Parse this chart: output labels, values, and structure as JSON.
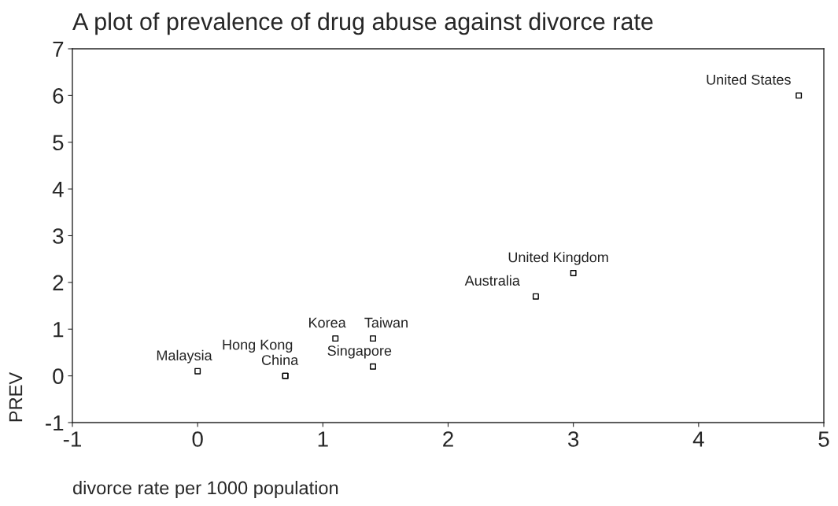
{
  "chart_data": {
    "type": "scatter",
    "title": "A plot of prevalence of drug abuse against divorce rate",
    "xlabel": "divorce rate per 1000 population",
    "ylabel": "PREV",
    "x": [
      4.8,
      3.0,
      2.7,
      1.1,
      1.4,
      1.4,
      0.7,
      0.7,
      0.0
    ],
    "series": [
      {
        "color": "#000000",
        "values": [
          6.0,
          2.2,
          1.7,
          0.8,
          0.8,
          0.2,
          0.0,
          0.0,
          0.1
        ]
      }
    ],
    "marker": "square",
    "annotations": [
      {
        "text": "United States",
        "x": 4.8,
        "y": 6.0
      },
      {
        "text": "United Kingdom",
        "x": 3.0,
        "y": 2.2
      },
      {
        "text": "Australia",
        "x": 2.7,
        "y": 1.7
      },
      {
        "text": "Korea",
        "x": 1.1,
        "y": 0.8
      },
      {
        "text": "Taiwan",
        "x": 1.4,
        "y": 0.8
      },
      {
        "text": "Singapore",
        "x": 1.4,
        "y": 0.2
      },
      {
        "text": "China",
        "x": 0.7,
        "y": 0.0
      },
      {
        "text": "Hong Kong",
        "x": 0.7,
        "y": 0.0
      },
      {
        "text": "Malaysia",
        "x": 0.0,
        "y": 0.1
      }
    ],
    "xlim": [
      -1,
      5
    ],
    "ylim": [
      -1,
      7
    ],
    "xticks": [
      -1,
      0,
      1,
      2,
      3,
      4,
      5
    ],
    "yticks": [
      -1,
      0,
      1,
      2,
      3,
      4,
      5,
      6,
      7
    ],
    "grid": false
  }
}
